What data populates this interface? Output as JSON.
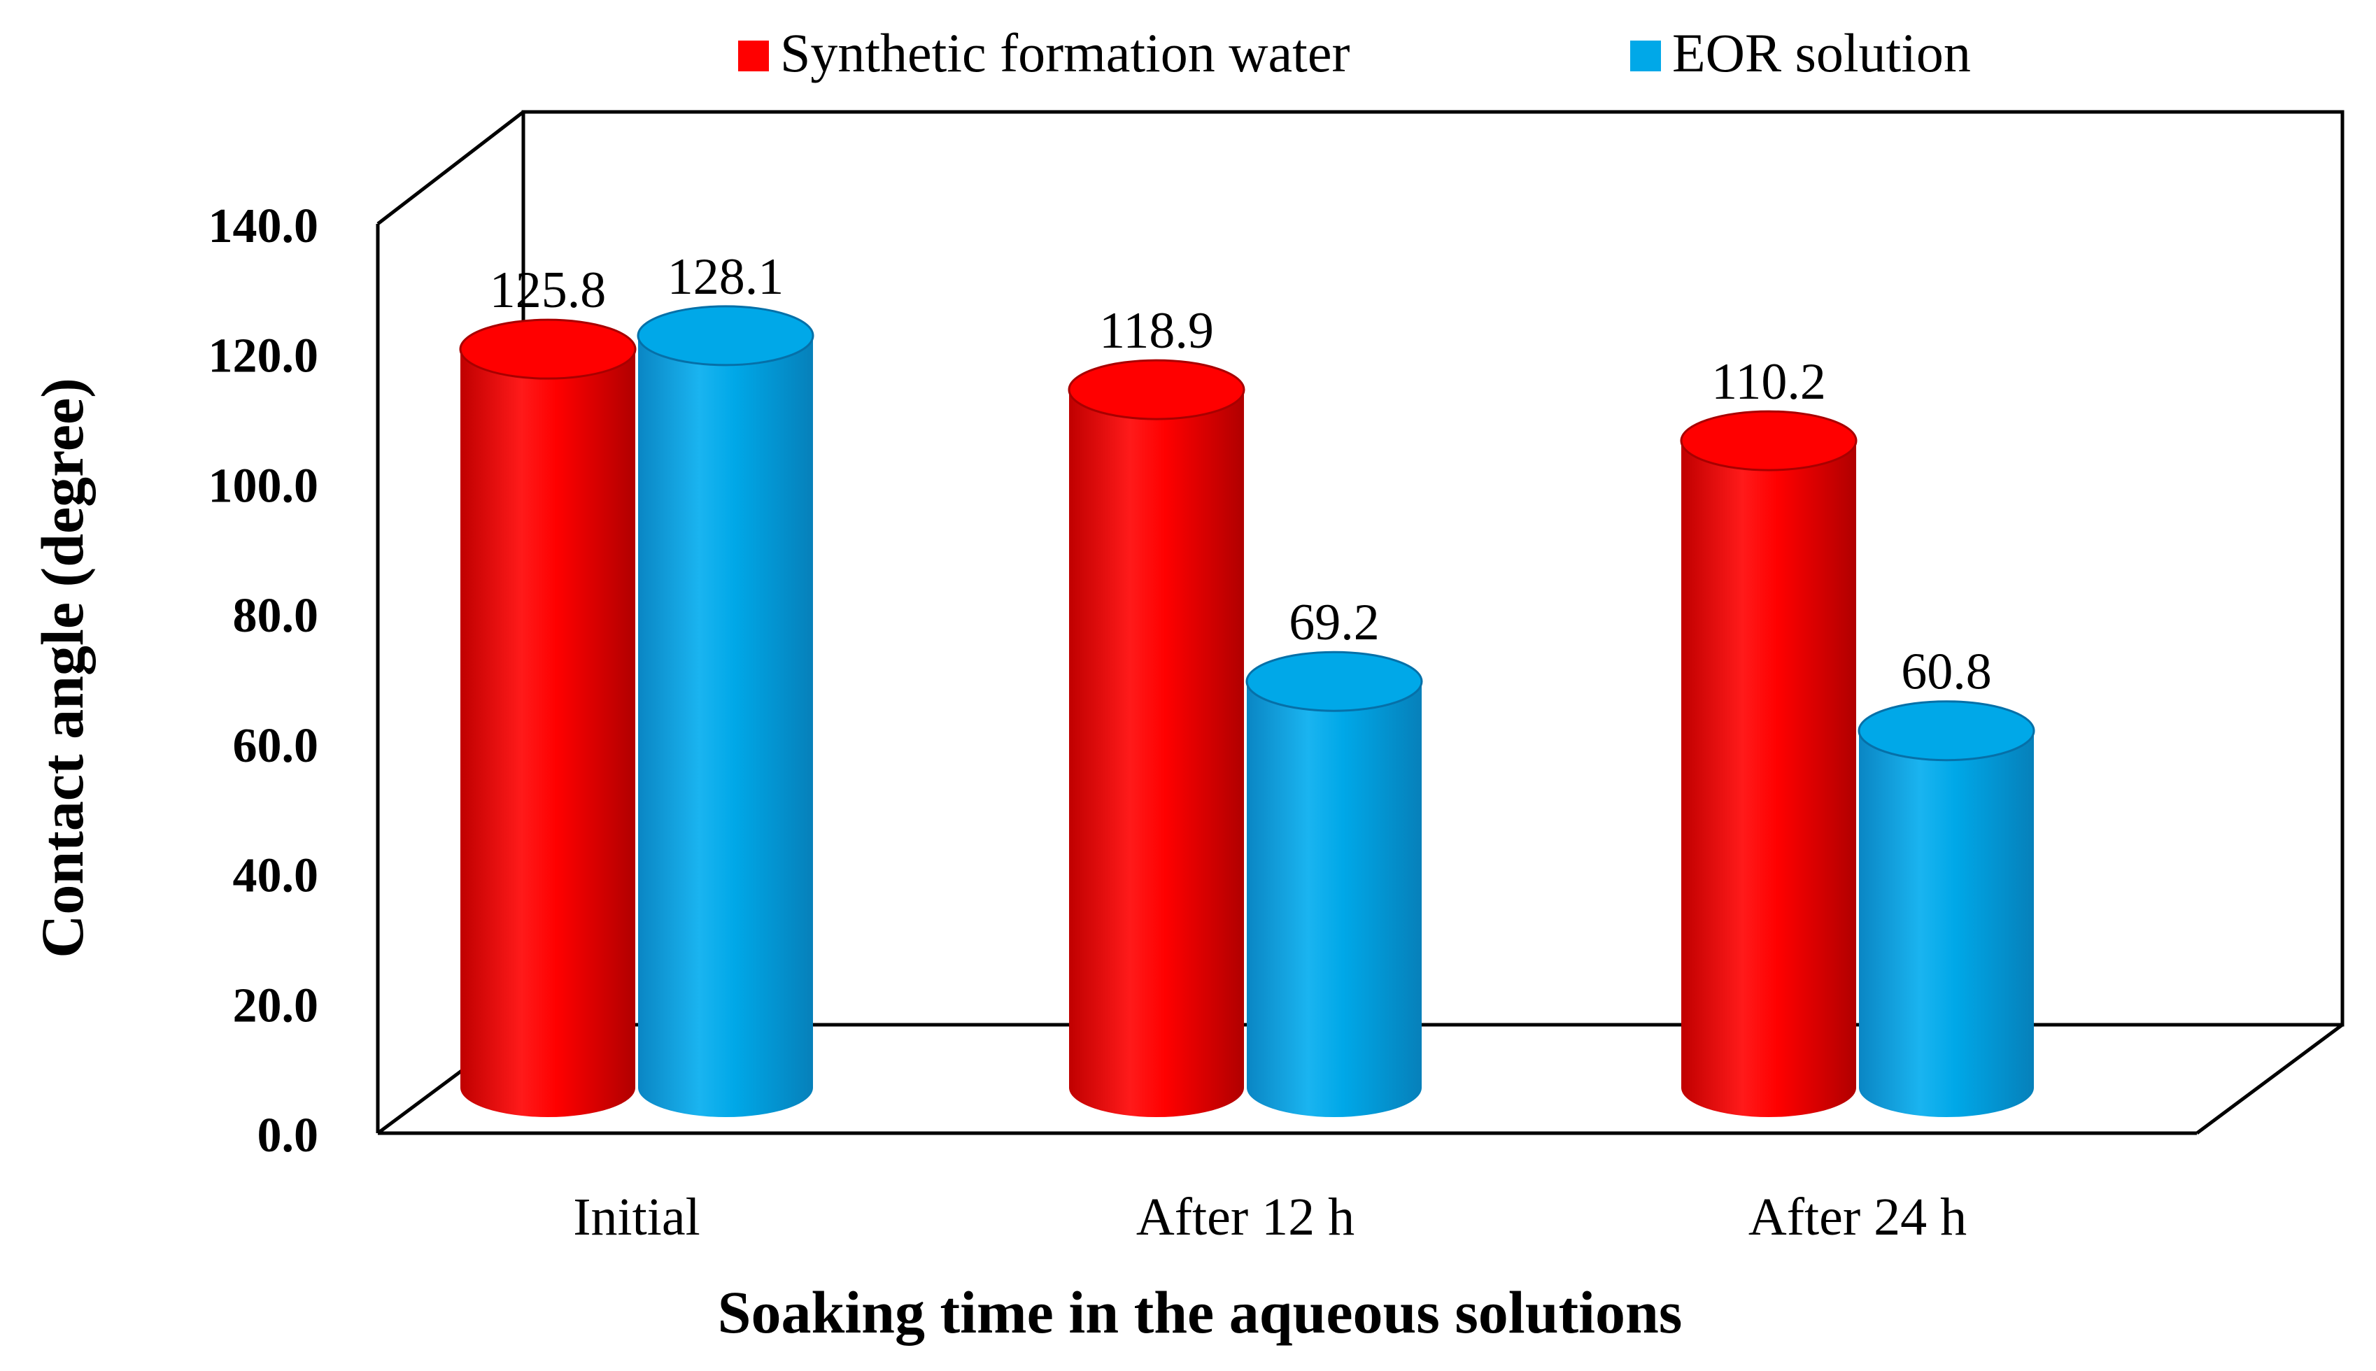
{
  "chart_data": {
    "type": "bar",
    "style": "3d-cylinder",
    "xlabel": "Soaking time in the aqueous solutions",
    "ylabel": "Contact angle (degree)",
    "categories": [
      "Initial",
      "After 12 h",
      "After 24 h"
    ],
    "series": [
      {
        "name": "Synthetic formation water",
        "values": [
          125.8,
          118.9,
          110.2
        ],
        "color": "#ff0000"
      },
      {
        "name": "EOR solution",
        "values": [
          128.1,
          69.2,
          60.8
        ],
        "color": "#00a8e8"
      }
    ],
    "data_labels": [
      [
        "125.8",
        "118.9",
        "110.2"
      ],
      [
        "128.1",
        "69.2",
        "60.8"
      ]
    ],
    "ylim": [
      0,
      140
    ],
    "yticks": [
      "0.0",
      "20.0",
      "40.0",
      "60.0",
      "80.0",
      "100.0",
      "120.0",
      "140.0"
    ],
    "legend_position": "top",
    "grid": false
  }
}
